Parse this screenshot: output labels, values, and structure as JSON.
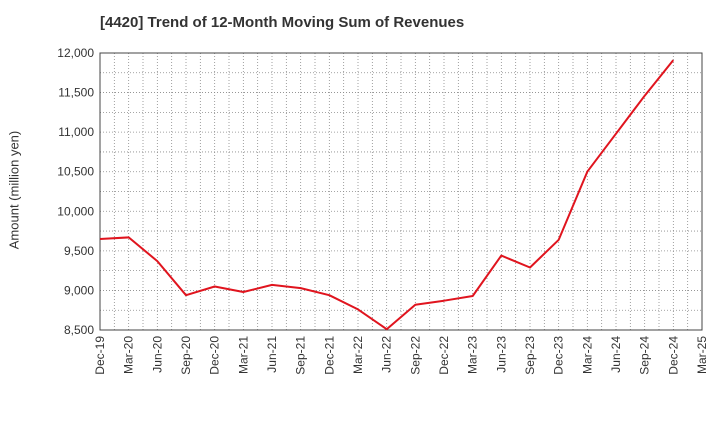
{
  "chart_data": {
    "type": "line",
    "title": "[4420]  Trend of 12-Month Moving Sum of Revenues",
    "xlabel": "",
    "ylabel": "Amount (million yen)",
    "ylim": [
      8500,
      12000
    ],
    "yticks": [
      "8,500",
      "9,000",
      "9,500",
      "10,000",
      "10,500",
      "11,000",
      "11,500",
      "12,000"
    ],
    "ytick_values": [
      8500,
      9000,
      9500,
      10000,
      10500,
      11000,
      11500,
      12000
    ],
    "categories": [
      "Dec-19",
      "Mar-20",
      "Jun-20",
      "Sep-20",
      "Dec-20",
      "Mar-21",
      "Jun-21",
      "Sep-21",
      "Dec-21",
      "Mar-22",
      "Jun-22",
      "Sep-22",
      "Dec-22",
      "Mar-23",
      "Jun-23",
      "Sep-23",
      "Dec-23",
      "Mar-24",
      "Jun-24",
      "Sep-24",
      "Dec-24",
      "Mar-25"
    ],
    "grid": true,
    "series": [
      {
        "color": "#e0141e",
        "values": [
          9650,
          9670,
          9370,
          8940,
          9050,
          8980,
          9070,
          9030,
          8940,
          8760,
          8510,
          8820,
          8870,
          8930,
          9440,
          9290,
          9640,
          10500,
          10980,
          11460,
          11910,
          null
        ]
      }
    ]
  }
}
